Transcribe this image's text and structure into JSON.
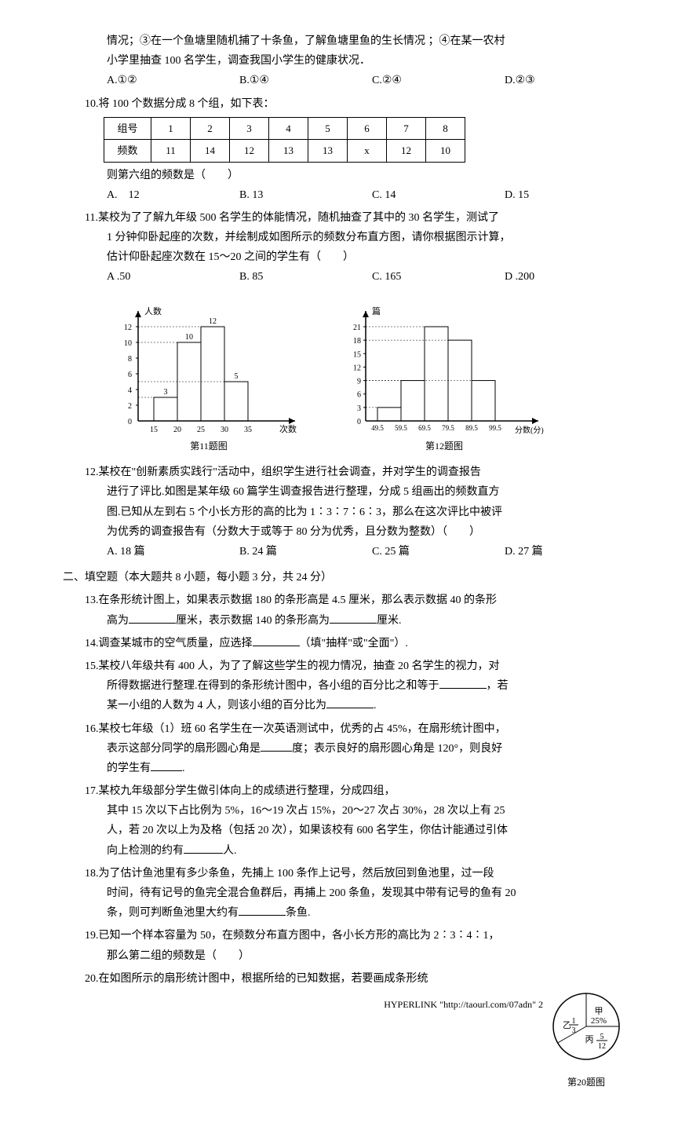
{
  "q9": {
    "cont1": "情况；③在一个鱼塘里随机捕了十条鱼，了解鱼塘里鱼的生长情况 ；④在某一农村",
    "cont2": "小学里抽查 100 名学生，调查我国小学生的健康状况．",
    "optA": "A.①②",
    "optB": "B.①④",
    "optC": "C.②④",
    "optD": "D.②③"
  },
  "q10": {
    "stem": "10.将 100 个数据分成 8 个组，如下表：",
    "table": {
      "headers": [
        "组号",
        "1",
        "2",
        "3",
        "4",
        "5",
        "6",
        "7",
        "8"
      ],
      "row": [
        "频数",
        "11",
        "14",
        "12",
        "13",
        "13",
        "x",
        "12",
        "10"
      ]
    },
    "tail": "则第六组的频数是（　　）",
    "optA": "A.　12",
    "optB": "B. 13",
    "optC": "C. 14",
    "optD": "D. 15"
  },
  "q11": {
    "l1": "11.某校为了了解九年级 500 名学生的体能情况，随机抽查了其中的 30 名学生，测试了",
    "l2": "1 分钟仰卧起座的次数，并绘制成如图所示的频数分布直方图，请你根据图示计算，",
    "l3": "估计仰卧起座次数在 15～20 之间的学生有（　　）",
    "optA": "A .50",
    "optB": "B. 85",
    "optC": "C. 165",
    "optD": "D .200",
    "chart1": {
      "ylabel": "人数",
      "xlabel": "次数",
      "yticks": [
        0,
        2,
        4,
        6,
        8,
        10,
        12
      ],
      "xticks": [
        "15",
        "20",
        "25",
        "30",
        "35"
      ],
      "bars": [
        3,
        10,
        12,
        5
      ],
      "bar_labels": [
        "3",
        "10",
        "12",
        "5"
      ],
      "caption": "第11题图",
      "axis_color": "#000",
      "bar_fill": "none"
    },
    "chart2": {
      "ylabel": "篇",
      "xlabel": "分数(分)",
      "yticks": [
        0,
        3,
        6,
        9,
        12,
        15,
        18,
        21
      ],
      "xticks": [
        "49.5",
        "59.5",
        "69.5",
        "79.5",
        "89.5",
        "99.5"
      ],
      "bars": [
        3,
        9,
        21,
        18,
        9
      ],
      "caption": "第12题图",
      "axis_color": "#000",
      "bar_fill": "none"
    }
  },
  "q12": {
    "l1": "12.某校在\"创新素质实践行\"活动中，组织学生进行社会调查，并对学生的调查报告",
    "l2": "进行了评比.如图是某年级 60 篇学生调查报告进行整理，分成 5 组画出的频数直方",
    "l3": "图.已知从左到右 5 个小长方形的高的比为 1∶3∶7∶6∶3，那么在这次评比中被评",
    "l4": "为优秀的调查报告有（分数大于或等于 80 分为优秀，且分数为整数）（　　）",
    "optA": "A. 18 篇",
    "optB": "B. 24 篇",
    "optC": "C. 25 篇",
    "optD": "D. 27 篇"
  },
  "section2": "二、填空题（本大题共 8 小题，每小题 3 分，共 24 分）",
  "q13": {
    "l1": "13.在条形统计图上，如果表示数据 180 的条形高是 4.5 厘米，那么表示数据 40 的条形",
    "l2a": "高为",
    "l2b": "厘米，表示数据 140 的条形高为",
    "l2c": "厘米."
  },
  "q14": {
    "a": "14.调查某城市的空气质量，应选择",
    "b": "（填\"抽样\"或\"全面\"）."
  },
  "q15": {
    "l1": "15.某校八年级共有 400 人，为了了解这些学生的视力情况，抽查 20 名学生的视力，对",
    "l2a": "所得数据进行整理.在得到的条形统计图中，各小组的百分比之和等于",
    "l2b": "，若",
    "l3a": "某一小组的人数为 4 人，则该小组的百分比为",
    "l3b": "."
  },
  "q16": {
    "l1": "16.某校七年级（1）班 60 名学生在一次英语测试中，优秀的占 45%，在扇形统计图中，",
    "l2a": "表示这部分同学的扇形圆心角是",
    "l2b": "度；表示良好的扇形圆心角是 120°，则良好",
    "l3a": "的学生有",
    "l3b": "."
  },
  "q17": {
    "l1": "17.某校九年级部分学生做引体向上的成绩进行整理，分成四组，",
    "l2": "其中 15 次以下占比例为 5%，16～19 次占 15%，20～27 次占 30%，28 次以上有 25",
    "l3": "人，若 20 次以上为及格（包括 20 次），如果该校有 600 名学生，你估计能通过引体",
    "l4a": "向上检测的约有",
    "l4b": "人."
  },
  "q18": {
    "l1": "18.为了估计鱼池里有多少条鱼，先捕上 100 条作上记号，然后放回到鱼池里，过一段",
    "l2": "时间，待有记号的鱼完全混合鱼群后，再捕上 200 条鱼，发现其中带有记号的鱼有 20",
    "l3a": "条，则可判断鱼池里大约有",
    "l3b": "条鱼."
  },
  "q19": {
    "l1": "19.已知一个样本容量为 50，在频数分布直方图中，各小长方形的高比为 2∶3∶4∶1，",
    "l2": "那么第二组的频数是（　　）"
  },
  "q20": {
    "l1": "20.在如图所示的扇形统计图中，根据所给的已知数据，若要画成条形统",
    "pie": {
      "labels": {
        "jia": "甲",
        "jia_pct": "25%",
        "yi": "乙",
        "bing": "丙"
      },
      "fractions": {
        "yi_num": "1",
        "yi_den": "3",
        "bing_num": "5",
        "bing_den": "12"
      },
      "colors": [
        "#ffffff"
      ],
      "caption": "第20题图"
    }
  },
  "footer": "HYPERLINK \"http://taourl.com/07adn\" 2"
}
